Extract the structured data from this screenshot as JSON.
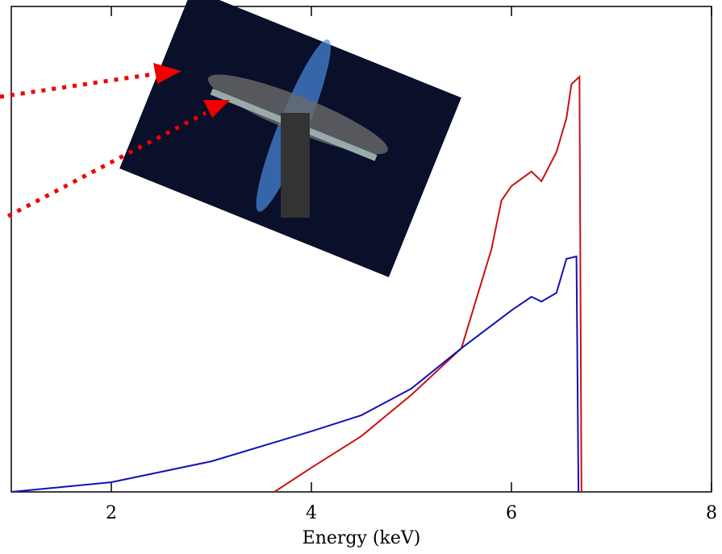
{
  "chart_data": {
    "type": "line",
    "x_label": "Energy (keV)",
    "xlim": [
      1,
      8
    ],
    "ylim": [
      0,
      1
    ],
    "xticks": [
      2,
      4,
      6,
      8
    ],
    "series": [
      {
        "color": "#cc1111",
        "x": [
          3.63,
          4,
          4.5,
          5,
          5.5,
          5.8,
          5.9,
          6.0,
          6.2,
          6.3,
          6.45,
          6.55,
          6.6,
          6.68,
          6.7
        ],
        "values": [
          0,
          0.05,
          0.115,
          0.2,
          0.296,
          0.5,
          0.6,
          0.63,
          0.66,
          0.64,
          0.7,
          0.77,
          0.84,
          0.855,
          0
        ]
      },
      {
        "color": "#1111bb",
        "x": [
          1,
          2,
          3,
          4,
          4.5,
          5,
          5.5,
          6,
          6.2,
          6.3,
          6.45,
          6.55,
          6.65,
          6.67
        ],
        "values": [
          0,
          0.02,
          0.063,
          0.125,
          0.158,
          0.213,
          0.296,
          0.374,
          0.402,
          0.392,
          0.41,
          0.48,
          0.485,
          0
        ]
      }
    ]
  }
}
